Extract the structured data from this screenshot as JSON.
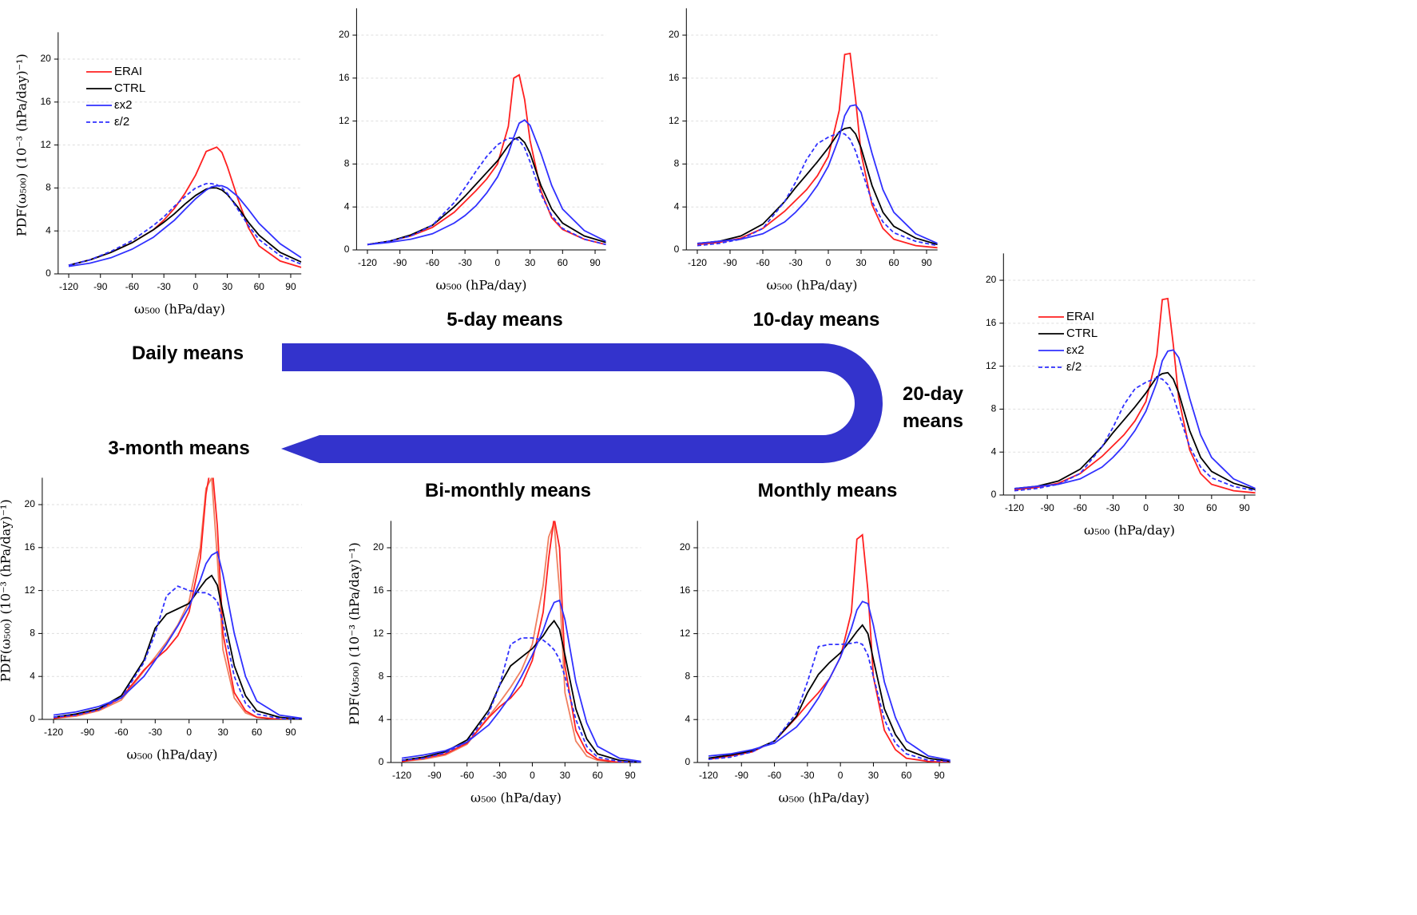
{
  "chart_data": [
    {
      "type": "line",
      "title": "Daily means",
      "xlabel": "ω₅₀₀ (hPa/day)",
      "ylabel": "PDF(ω₅₀₀) (10⁻³ (hPa/day)⁻¹)",
      "x": [
        -120,
        -100,
        -80,
        -60,
        -40,
        -30,
        -20,
        -10,
        0,
        10,
        15,
        20,
        25,
        30,
        40,
        50,
        60,
        80,
        100
      ],
      "xlim": [
        -130,
        100
      ],
      "ylim": [
        0,
        22.5
      ],
      "xticks": [
        -120,
        -90,
        -60,
        -30,
        0,
        30,
        60,
        90
      ],
      "yticks": [
        0,
        4,
        8,
        12,
        16,
        20
      ],
      "grid": true,
      "legend": "upper left",
      "series": [
        {
          "name": "ERAI",
          "color": "#ff2020",
          "dash": false,
          "values": [
            0.8,
            1.3,
            2.0,
            2.9,
            4.1,
            5.0,
            6.1,
            7.5,
            9.2,
            11.4,
            11.6,
            11.8,
            11.3,
            10.0,
            7.0,
            4.3,
            2.6,
            1.2,
            0.6
          ]
        },
        {
          "name": "CTRL",
          "color": "#000000",
          "dash": false,
          "values": [
            0.8,
            1.3,
            2.0,
            2.9,
            4.1,
            4.8,
            5.6,
            6.5,
            7.3,
            7.9,
            8.0,
            8.0,
            7.8,
            7.4,
            6.2,
            4.8,
            3.6,
            2.0,
            1.1
          ]
        },
        {
          "name": "εx2",
          "color": "#3030ff",
          "dash": false,
          "values": [
            0.7,
            1.0,
            1.5,
            2.3,
            3.4,
            4.2,
            5.0,
            6.0,
            7.0,
            7.8,
            8.1,
            8.2,
            8.2,
            8.0,
            7.2,
            6.0,
            4.7,
            2.8,
            1.5
          ]
        },
        {
          "name": "ε/2",
          "color": "#3030ff",
          "dash": true,
          "values": [
            0.8,
            1.3,
            2.1,
            3.1,
            4.5,
            5.3,
            6.3,
            7.2,
            8.0,
            8.4,
            8.4,
            8.3,
            8.0,
            7.5,
            6.0,
            4.5,
            3.2,
            1.7,
            0.9
          ]
        }
      ]
    },
    {
      "type": "line",
      "title": "5-day means",
      "xlabel": "ω₅₀₀ (hPa/day)",
      "x": [
        -120,
        -100,
        -80,
        -60,
        -40,
        -30,
        -20,
        -10,
        0,
        10,
        15,
        20,
        25,
        30,
        40,
        50,
        60,
        80,
        100
      ],
      "xlim": [
        -130,
        100
      ],
      "ylim": [
        0,
        22.5
      ],
      "xticks": [
        -120,
        -90,
        -60,
        -30,
        0,
        30,
        60,
        90
      ],
      "yticks": [
        0,
        4,
        8,
        12,
        16,
        20
      ],
      "grid": true,
      "series": [
        {
          "color": "#ff2020",
          "dash": false,
          "values": [
            0.5,
            0.8,
            1.3,
            2.1,
            3.5,
            4.5,
            5.5,
            6.6,
            8.0,
            11.5,
            16.0,
            16.3,
            14.0,
            10.2,
            5.5,
            3.0,
            1.9,
            1.0,
            0.5
          ]
        },
        {
          "color": "#000000",
          "dash": false,
          "values": [
            0.5,
            0.8,
            1.4,
            2.3,
            4.0,
            5.0,
            6.1,
            7.2,
            8.3,
            9.7,
            10.3,
            10.5,
            10.0,
            9.0,
            6.0,
            3.8,
            2.5,
            1.3,
            0.7
          ]
        },
        {
          "color": "#3030ff",
          "dash": false,
          "values": [
            0.5,
            0.7,
            1.0,
            1.5,
            2.5,
            3.2,
            4.1,
            5.3,
            6.8,
            9.0,
            10.5,
            11.8,
            12.1,
            11.6,
            9.0,
            6.0,
            3.8,
            1.8,
            0.8
          ]
        },
        {
          "color": "#3030ff",
          "dash": true,
          "values": [
            0.5,
            0.8,
            1.3,
            2.3,
            4.4,
            5.8,
            7.3,
            8.7,
            9.8,
            10.4,
            10.4,
            10.2,
            9.5,
            8.2,
            5.2,
            3.2,
            2.0,
            1.0,
            0.5
          ]
        }
      ]
    },
    {
      "type": "line",
      "title": "10-day means",
      "xlabel": "ω₅₀₀ (hPa/day)",
      "x": [
        -120,
        -100,
        -80,
        -60,
        -40,
        -30,
        -20,
        -10,
        0,
        10,
        15,
        20,
        25,
        30,
        40,
        50,
        60,
        80,
        100
      ],
      "xlim": [
        -130,
        100
      ],
      "ylim": [
        0,
        22.5
      ],
      "xticks": [
        -120,
        -90,
        -60,
        -30,
        0,
        30,
        60,
        90
      ],
      "yticks": [
        0,
        4,
        8,
        12,
        16,
        20
      ],
      "grid": true,
      "series": [
        {
          "color": "#ff2020",
          "dash": false,
          "values": [
            0.5,
            0.7,
            1.1,
            2.0,
            3.6,
            4.6,
            5.6,
            6.9,
            8.7,
            13.0,
            18.2,
            18.3,
            14.0,
            9.0,
            4.2,
            2.0,
            1.0,
            0.4,
            0.2
          ]
        },
        {
          "color": "#000000",
          "dash": false,
          "values": [
            0.6,
            0.8,
            1.3,
            2.4,
            4.5,
            5.8,
            7.0,
            8.2,
            9.5,
            11.0,
            11.3,
            11.4,
            10.8,
            9.5,
            6.0,
            3.5,
            2.2,
            1.1,
            0.5
          ]
        },
        {
          "color": "#3030ff",
          "dash": false,
          "values": [
            0.6,
            0.8,
            1.0,
            1.5,
            2.6,
            3.5,
            4.6,
            6.0,
            7.8,
            10.5,
            12.5,
            13.4,
            13.5,
            12.8,
            9.0,
            5.6,
            3.5,
            1.5,
            0.6
          ]
        },
        {
          "color": "#3030ff",
          "dash": true,
          "values": [
            0.4,
            0.6,
            1.0,
            2.0,
            4.5,
            6.3,
            8.4,
            9.9,
            10.5,
            10.9,
            10.8,
            10.3,
            9.2,
            7.6,
            4.5,
            2.6,
            1.6,
            0.8,
            0.4
          ]
        }
      ]
    },
    {
      "type": "line",
      "title": "20-day means",
      "xlabel": "ω₅₀₀ (hPa/day)",
      "x": [
        -120,
        -100,
        -80,
        -60,
        -40,
        -30,
        -20,
        -10,
        0,
        10,
        15,
        20,
        25,
        30,
        40,
        50,
        60,
        80,
        100
      ],
      "xlim": [
        -130,
        100
      ],
      "ylim": [
        0,
        22.5
      ],
      "xticks": [
        -120,
        -90,
        -60,
        -30,
        0,
        30,
        60,
        90
      ],
      "yticks": [
        0,
        4,
        8,
        12,
        16,
        20
      ],
      "grid": true,
      "legend": "upper left",
      "series": [
        {
          "name": "ERAI",
          "color": "#ff2020",
          "dash": false,
          "values": [
            0.5,
            0.7,
            1.1,
            2.0,
            3.6,
            4.6,
            5.6,
            6.9,
            8.7,
            13.0,
            18.2,
            18.3,
            14.0,
            9.0,
            4.2,
            2.0,
            1.0,
            0.4,
            0.2
          ]
        },
        {
          "name": "CTRL",
          "color": "#000000",
          "dash": false,
          "values": [
            0.6,
            0.8,
            1.3,
            2.4,
            4.5,
            5.8,
            7.0,
            8.2,
            9.5,
            11.0,
            11.3,
            11.4,
            10.8,
            9.5,
            6.0,
            3.5,
            2.2,
            1.1,
            0.5
          ]
        },
        {
          "name": "εx2",
          "color": "#3030ff",
          "dash": false,
          "values": [
            0.6,
            0.8,
            1.0,
            1.5,
            2.6,
            3.5,
            4.6,
            6.0,
            7.8,
            10.5,
            12.5,
            13.4,
            13.5,
            12.8,
            9.0,
            5.6,
            3.5,
            1.5,
            0.6
          ]
        },
        {
          "name": "ε/2",
          "color": "#3030ff",
          "dash": true,
          "values": [
            0.4,
            0.6,
            1.0,
            2.0,
            4.5,
            6.3,
            8.4,
            9.9,
            10.5,
            10.9,
            10.8,
            10.3,
            9.2,
            7.6,
            4.5,
            2.6,
            1.6,
            0.8,
            0.4
          ]
        }
      ]
    },
    {
      "type": "line",
      "title": "3-month means",
      "xlabel": "ω₅₀₀ (hPa/day)",
      "ylabel": "PDF(ω₅₀₀) (10⁻³ (hPa/day)⁻¹)",
      "x": [
        -120,
        -100,
        -80,
        -60,
        -40,
        -30,
        -20,
        -10,
        0,
        10,
        15,
        20,
        25,
        30,
        40,
        50,
        60,
        80,
        100
      ],
      "xlim": [
        -130,
        100
      ],
      "ylim": [
        0,
        22.5
      ],
      "xticks": [
        -120,
        -90,
        -60,
        -30,
        0,
        30,
        60,
        90
      ],
      "yticks": [
        0,
        4,
        8,
        12,
        16,
        20
      ],
      "grid": true,
      "series": [
        {
          "color": "#f08060",
          "dash": false,
          "values": [
            0.1,
            0.3,
            0.8,
            1.8,
            4.5,
            5.8,
            7.2,
            8.8,
            11.0,
            16.0,
            21.5,
            22.5,
            15.0,
            6.5,
            2.0,
            0.6,
            0.2,
            0,
            0
          ]
        },
        {
          "color": "#ff2020",
          "dash": false,
          "values": [
            0.1,
            0.4,
            0.9,
            2.0,
            4.6,
            5.6,
            6.5,
            7.8,
            10.0,
            15.0,
            21.0,
            24.0,
            18.0,
            8.0,
            2.5,
            0.8,
            0.2,
            0,
            0
          ]
        },
        {
          "color": "#000000",
          "dash": false,
          "values": [
            0.2,
            0.5,
            1.0,
            2.2,
            5.5,
            8.5,
            9.8,
            10.3,
            10.8,
            12.3,
            13.0,
            13.4,
            12.5,
            10.0,
            5.0,
            2.2,
            0.8,
            0.2,
            0
          ]
        },
        {
          "color": "#3030ff",
          "dash": false,
          "values": [
            0.4,
            0.7,
            1.2,
            2.0,
            4.0,
            5.5,
            7.0,
            8.7,
            10.5,
            13.0,
            14.5,
            15.3,
            15.6,
            13.5,
            8.0,
            4.0,
            1.7,
            0.4,
            0.1
          ]
        },
        {
          "color": "#3030ff",
          "dash": true,
          "values": [
            0.2,
            0.4,
            0.9,
            2.0,
            5.3,
            8.0,
            11.5,
            12.4,
            12.0,
            11.8,
            11.8,
            11.5,
            11.0,
            9.0,
            4.0,
            1.5,
            0.5,
            0.1,
            0
          ]
        }
      ]
    },
    {
      "type": "line",
      "title": "Bi-monthly means",
      "xlabel": "ω₅₀₀ (hPa/day)",
      "ylabel": "PDF(ω₅₀₀) (10⁻³ (hPa/day)⁻¹)",
      "x": [
        -120,
        -100,
        -80,
        -60,
        -40,
        -30,
        -20,
        -10,
        0,
        10,
        15,
        20,
        25,
        30,
        40,
        50,
        60,
        80,
        100
      ],
      "xlim": [
        -130,
        100
      ],
      "ylim": [
        0,
        22.5
      ],
      "xticks": [
        -120,
        -90,
        -60,
        -30,
        0,
        30,
        60,
        90
      ],
      "yticks": [
        0,
        4,
        8,
        12,
        16,
        20
      ],
      "grid": true,
      "series": [
        {
          "color": "#f08060",
          "dash": false,
          "values": [
            0.1,
            0.3,
            0.7,
            1.7,
            4.3,
            5.6,
            7.0,
            8.6,
            11.0,
            16.5,
            21.0,
            22.3,
            16.0,
            6.5,
            2.0,
            0.6,
            0.2,
            0,
            0
          ]
        },
        {
          "color": "#ff2020",
          "dash": false,
          "values": [
            0.1,
            0.4,
            0.8,
            1.8,
            4.2,
            5.2,
            6.0,
            7.2,
            9.5,
            14.0,
            19.0,
            22.8,
            20.0,
            9.0,
            3.0,
            1.0,
            0.3,
            0,
            0
          ]
        },
        {
          "color": "#000000",
          "dash": false,
          "values": [
            0.2,
            0.5,
            1.0,
            2.1,
            4.9,
            7.2,
            9.0,
            9.8,
            10.6,
            11.8,
            12.6,
            13.2,
            12.4,
            10.0,
            5.0,
            2.2,
            0.8,
            0.2,
            0
          ]
        },
        {
          "color": "#3030ff",
          "dash": false,
          "values": [
            0.4,
            0.7,
            1.1,
            1.9,
            3.5,
            4.8,
            6.2,
            8.0,
            10.0,
            12.3,
            13.8,
            14.9,
            15.1,
            13.3,
            7.5,
            3.7,
            1.5,
            0.4,
            0.1
          ]
        },
        {
          "color": "#3030ff",
          "dash": true,
          "values": [
            0.2,
            0.4,
            0.9,
            1.9,
            4.6,
            7.2,
            11.0,
            11.6,
            11.6,
            11.4,
            11.0,
            10.5,
            9.6,
            8.0,
            4.0,
            1.5,
            0.5,
            0.1,
            0
          ]
        }
      ]
    },
    {
      "type": "line",
      "title": "Monthly means",
      "xlabel": "ω₅₀₀ (hPa/day)",
      "x": [
        -120,
        -100,
        -80,
        -60,
        -40,
        -30,
        -20,
        -10,
        0,
        10,
        15,
        20,
        25,
        30,
        40,
        50,
        60,
        80,
        100
      ],
      "xlim": [
        -130,
        100
      ],
      "ylim": [
        0,
        22.5
      ],
      "xticks": [
        -120,
        -90,
        -60,
        -30,
        0,
        30,
        60,
        90
      ],
      "yticks": [
        0,
        4,
        8,
        12,
        16,
        20
      ],
      "grid": true,
      "series": [
        {
          "color": "#ff2020",
          "dash": false,
          "values": [
            0.3,
            0.6,
            1.0,
            2.0,
            4.2,
            5.4,
            6.5,
            7.8,
            9.8,
            14.0,
            20.8,
            21.2,
            16.0,
            8.0,
            3.0,
            1.2,
            0.4,
            0.1,
            0
          ]
        },
        {
          "color": "#000000",
          "dash": false,
          "values": [
            0.4,
            0.7,
            1.1,
            2.0,
            4.3,
            6.5,
            8.2,
            9.3,
            10.2,
            11.5,
            12.2,
            12.8,
            12.0,
            9.6,
            5.0,
            2.6,
            1.2,
            0.4,
            0.1
          ]
        },
        {
          "color": "#3030ff",
          "dash": false,
          "values": [
            0.6,
            0.8,
            1.2,
            1.8,
            3.3,
            4.5,
            6.0,
            7.8,
            9.8,
            12.5,
            14.2,
            15.0,
            14.8,
            12.8,
            7.5,
            4.2,
            2.0,
            0.6,
            0.2
          ]
        },
        {
          "color": "#3030ff",
          "dash": true,
          "values": [
            0.3,
            0.5,
            1.0,
            2.0,
            4.6,
            7.5,
            10.8,
            11.0,
            11.0,
            11.1,
            11.2,
            11.0,
            10.0,
            8.0,
            4.0,
            1.8,
            0.8,
            0.2,
            0.1
          ]
        }
      ]
    }
  ]
}
